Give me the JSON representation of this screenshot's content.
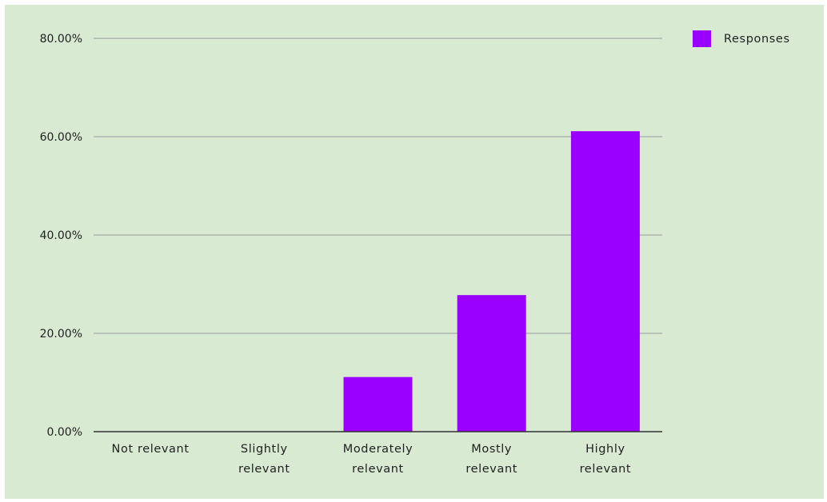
{
  "chart_data": {
    "type": "bar",
    "categories": [
      [
        "Not relevant"
      ],
      [
        "Slightly",
        "relevant"
      ],
      [
        "Moderately",
        "relevant"
      ],
      [
        "Mostly",
        "relevant"
      ],
      [
        "Highly",
        "relevant"
      ]
    ],
    "series": [
      {
        "name": "Responses",
        "color": "#9900ff",
        "values": [
          0,
          0,
          11.11,
          27.78,
          61.11
        ]
      }
    ],
    "ylim": [
      0,
      80
    ],
    "yticks": [
      0,
      20,
      40,
      60,
      80
    ],
    "ytick_labels": [
      "0.00%",
      "20.00%",
      "40.00%",
      "60.00%",
      "80.00%"
    ],
    "grid": true,
    "legend_position": "top-right",
    "background": "#d9ead3",
    "gridline_color": "#999999",
    "axis_color": "#333333"
  }
}
